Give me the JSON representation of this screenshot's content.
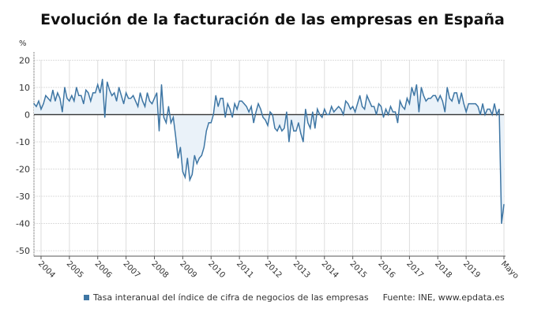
{
  "title": "Evolución de la facturación de las empresas en España",
  "legend": {
    "label": "Tasa interanual del índice de cifra de negocios de las empresas",
    "source": "Fuente: INE, www.epdata.es"
  },
  "colors": {
    "line": "#3e76a4",
    "fill": "#eaf2f9",
    "zero_line": "#333333",
    "grid": "#dddddd"
  },
  "chart_data": {
    "type": "area",
    "title": "Evolución de la facturación de las empresas en España",
    "ylabel": "%",
    "xlabel": "",
    "ylim": [
      -52,
      23
    ],
    "yticks": [
      20,
      10,
      0,
      -10,
      -20,
      -30,
      -40,
      -50
    ],
    "xticks": [
      "2004",
      "2005",
      "2006",
      "2007",
      "2008",
      "2009",
      "2010",
      "2011",
      "2012",
      "2013",
      "2014",
      "2015",
      "2016",
      "2017",
      "2018",
      "2019",
      "Mayo"
    ],
    "grid": true,
    "legend_position": "bottom",
    "start": "2003-10",
    "end": "2020-05",
    "frequency": "monthly",
    "series": [
      {
        "name": "Tasa interanual del índice de cifra de negocios de las empresas",
        "values": [
          4,
          3,
          5,
          2,
          4,
          7,
          6,
          5,
          9,
          5,
          8,
          6,
          1,
          10,
          6,
          5,
          7,
          5,
          10,
          7,
          7,
          4,
          9,
          8,
          5,
          8,
          8,
          11,
          8,
          13,
          -1,
          12,
          9,
          7,
          8,
          5,
          10,
          7,
          4,
          8,
          6,
          6,
          7,
          5,
          3,
          8,
          5,
          3,
          8,
          5,
          4,
          6,
          8,
          -6,
          11,
          -1,
          -3,
          3,
          -3,
          -1,
          -8,
          -16,
          -12,
          -21,
          -23,
          -16,
          -24,
          -22,
          -15,
          -18,
          -16,
          -15,
          -12,
          -6,
          -3,
          -3,
          0,
          7,
          3,
          6,
          6,
          -1,
          4,
          2,
          -1,
          4,
          2,
          5,
          5,
          4,
          3,
          1,
          3,
          -3,
          1,
          4,
          2,
          -1,
          -2,
          -4,
          1,
          0,
          -5,
          -6,
          -4,
          -6,
          -5,
          1,
          -10,
          -2,
          -6,
          -6,
          -3,
          -7,
          -10,
          2,
          -3,
          -5,
          1,
          -5,
          2,
          0,
          -1,
          2,
          0,
          0,
          3,
          1,
          2,
          3,
          2,
          0,
          5,
          4,
          2,
          3,
          1,
          4,
          7,
          3,
          2,
          7,
          5,
          3,
          3,
          0,
          4,
          3,
          -1,
          2,
          0,
          3,
          1,
          1,
          -3,
          5,
          3,
          2,
          6,
          4,
          10,
          7,
          11,
          1,
          10,
          7,
          5,
          6,
          6,
          7,
          7,
          5,
          7,
          5,
          1,
          10,
          6,
          5,
          8,
          8,
          4,
          8,
          4,
          1,
          4,
          4,
          4,
          4,
          3,
          0,
          4,
          0,
          2,
          2,
          0,
          4,
          0,
          2,
          -40,
          -33
        ]
      }
    ]
  }
}
